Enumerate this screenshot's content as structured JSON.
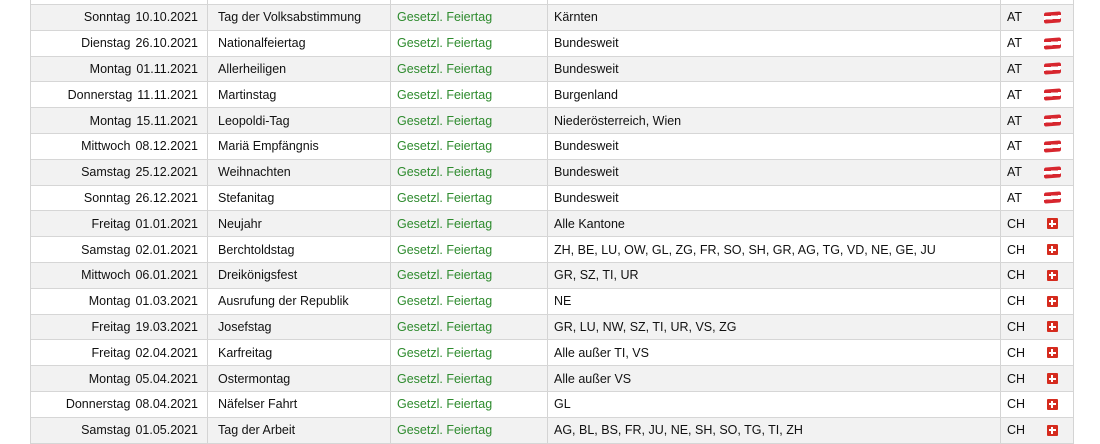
{
  "type_color": "#2e8b2e",
  "rows": [
    {
      "weekday": "",
      "date": "",
      "name": "",
      "type": "",
      "region": "",
      "country": "",
      "flag": ""
    },
    {
      "weekday": "Sonntag",
      "date": "10.10.2021",
      "name": "Tag der Volksabstimmung",
      "type": "Gesetzl. Feiertag",
      "region": "Kärnten",
      "country": "AT",
      "flag": "austria-flag"
    },
    {
      "weekday": "Dienstag",
      "date": "26.10.2021",
      "name": "Nationalfeiertag",
      "type": "Gesetzl. Feiertag",
      "region": "Bundesweit",
      "country": "AT",
      "flag": "austria-flag"
    },
    {
      "weekday": "Montag",
      "date": "01.11.2021",
      "name": "Allerheiligen",
      "type": "Gesetzl. Feiertag",
      "region": "Bundesweit",
      "country": "AT",
      "flag": "austria-flag"
    },
    {
      "weekday": "Donnerstag",
      "date": "11.11.2021",
      "name": "Martinstag",
      "type": "Gesetzl. Feiertag",
      "region": "Burgenland",
      "country": "AT",
      "flag": "austria-flag"
    },
    {
      "weekday": "Montag",
      "date": "15.11.2021",
      "name": "Leopoldi-Tag",
      "type": "Gesetzl. Feiertag",
      "region": "Niederösterreich, Wien",
      "country": "AT",
      "flag": "austria-flag"
    },
    {
      "weekday": "Mittwoch",
      "date": "08.12.2021",
      "name": "Mariä Empfängnis",
      "type": "Gesetzl. Feiertag",
      "region": "Bundesweit",
      "country": "AT",
      "flag": "austria-flag"
    },
    {
      "weekday": "Samstag",
      "date": "25.12.2021",
      "name": "Weihnachten",
      "type": "Gesetzl. Feiertag",
      "region": "Bundesweit",
      "country": "AT",
      "flag": "austria-flag"
    },
    {
      "weekday": "Sonntag",
      "date": "26.12.2021",
      "name": "Stefanitag",
      "type": "Gesetzl. Feiertag",
      "region": "Bundesweit",
      "country": "AT",
      "flag": "austria-flag"
    },
    {
      "weekday": "Freitag",
      "date": "01.01.2021",
      "name": "Neujahr",
      "type": "Gesetzl. Feiertag",
      "region": "Alle Kantone",
      "country": "CH",
      "flag": "switzerland-flag"
    },
    {
      "weekday": "Samstag",
      "date": "02.01.2021",
      "name": "Berchtoldstag",
      "type": "Gesetzl. Feiertag",
      "region": " ZH,  BE,  LU,  OW,  GL,  ZG,  FR,  SO,  SH,  GR,  AG,  TG,  VD,  NE,  GE,  JU",
      "country": "CH",
      "flag": "switzerland-flag"
    },
    {
      "weekday": "Mittwoch",
      "date": "06.01.2021",
      "name": "Dreikönigsfest",
      "type": "Gesetzl. Feiertag",
      "region": "GR, SZ, TI, UR",
      "country": "CH",
      "flag": "switzerland-flag"
    },
    {
      "weekday": "Montag",
      "date": "01.03.2021",
      "name": "Ausrufung der Republik",
      "type": "Gesetzl. Feiertag",
      "region": "NE",
      "country": "CH",
      "flag": "switzerland-flag"
    },
    {
      "weekday": "Freitag",
      "date": "19.03.2021",
      "name": "Josefstag",
      "type": "Gesetzl. Feiertag",
      "region": "GR, LU, NW, SZ, TI, UR, VS, ZG",
      "country": "CH",
      "flag": "switzerland-flag"
    },
    {
      "weekday": "Freitag",
      "date": "02.04.2021",
      "name": "Karfreitag",
      "type": "Gesetzl. Feiertag",
      "region": "Alle außer TI, VS",
      "country": "CH",
      "flag": "switzerland-flag"
    },
    {
      "weekday": "Montag",
      "date": "05.04.2021",
      "name": "Ostermontag",
      "type": "Gesetzl. Feiertag",
      "region": "Alle außer VS",
      "country": "CH",
      "flag": "switzerland-flag"
    },
    {
      "weekday": "Donnerstag",
      "date": "08.04.2021",
      "name": "Näfelser Fahrt",
      "type": "Gesetzl. Feiertag",
      "region": "GL",
      "country": "CH",
      "flag": "switzerland-flag"
    },
    {
      "weekday": "Samstag",
      "date": "01.05.2021",
      "name": "Tag der Arbeit",
      "type": "Gesetzl. Feiertag",
      "region": "AG, BL, BS, FR, JU, NE, SH, SO, TG, TI, ZH",
      "country": "CH",
      "flag": "switzerland-flag"
    }
  ]
}
